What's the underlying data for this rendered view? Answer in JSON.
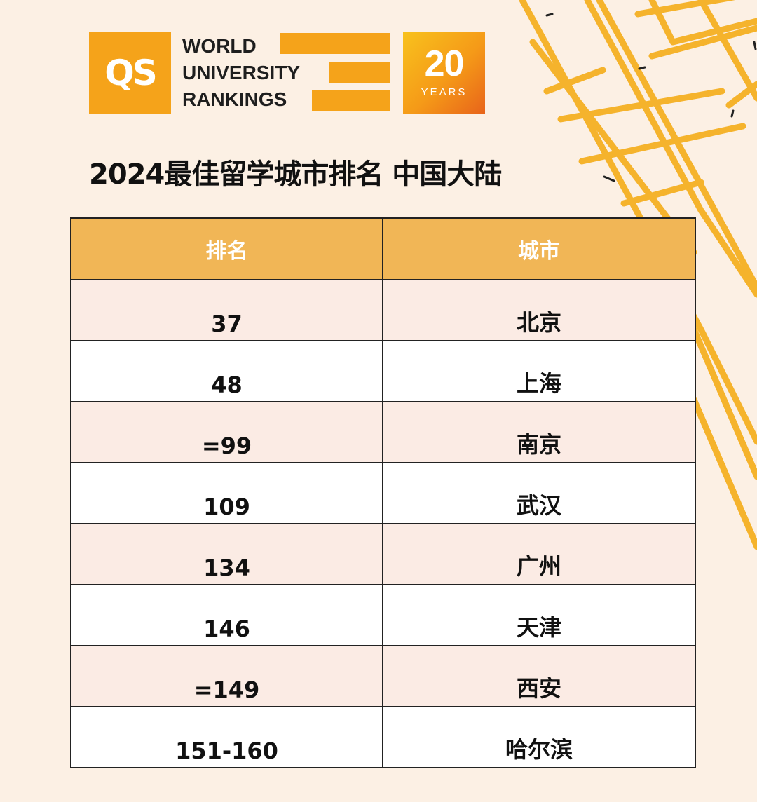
{
  "logo": {
    "qs": "QS",
    "line1": "WORLD",
    "line2": "UNIVERSITY",
    "line3": "RANKINGS",
    "anniversary_number": "20",
    "anniversary_label": "YEARS"
  },
  "title": "2024最佳留学城市排名 中国大陆",
  "table": {
    "headers": [
      "排名",
      "城市"
    ],
    "rows": [
      {
        "rank": "37",
        "city": "北京"
      },
      {
        "rank": "48",
        "city": "上海"
      },
      {
        "rank": "=99",
        "city": "南京"
      },
      {
        "rank": "109",
        "city": "武汉"
      },
      {
        "rank": "134",
        "city": "广州"
      },
      {
        "rank": "146",
        "city": "天津"
      },
      {
        "rank": "=149",
        "city": "西安"
      },
      {
        "rank": "151-160",
        "city": "哈尔滨"
      }
    ]
  },
  "colors": {
    "background": "#fcf0e4",
    "accent": "#f5a31a",
    "header_fill": "#f1b656",
    "row_tint": "#fbebe4"
  }
}
